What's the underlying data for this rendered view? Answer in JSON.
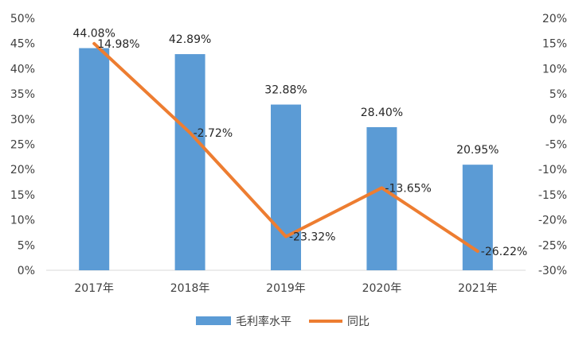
{
  "chart_data": {
    "type": "bar",
    "categories": [
      "2017年",
      "2018年",
      "2019年",
      "2020年",
      "2021年"
    ],
    "series": [
      {
        "name": "毛利率水平",
        "type": "bar",
        "axis": "left",
        "color": "#5B9BD5",
        "values": [
          44.08,
          42.89,
          32.88,
          28.4,
          20.95
        ],
        "labels": [
          "44.08%",
          "42.89%",
          "32.88%",
          "28.40%",
          "20.95%"
        ]
      },
      {
        "name": "同比",
        "type": "line",
        "axis": "right",
        "color": "#ED7D31",
        "values": [
          14.98,
          -2.72,
          -23.32,
          -13.65,
          -26.22
        ],
        "labels": [
          "14.98%",
          "-2.72%",
          "-23.32%",
          "-13.65%",
          "-26.22%"
        ]
      }
    ],
    "y_left": {
      "min": 0,
      "max": 50,
      "step": 5,
      "ticks": [
        "0%",
        "5%",
        "10%",
        "15%",
        "20%",
        "25%",
        "30%",
        "35%",
        "40%",
        "45%",
        "50%"
      ]
    },
    "y_right": {
      "min": -30,
      "max": 20,
      "step": 5,
      "ticks": [
        "-30%",
        "-25%",
        "-20%",
        "-15%",
        "-10%",
        "-5%",
        "0%",
        "5%",
        "10%",
        "15%",
        "20%"
      ]
    },
    "grid": false,
    "legend": "bottom"
  }
}
